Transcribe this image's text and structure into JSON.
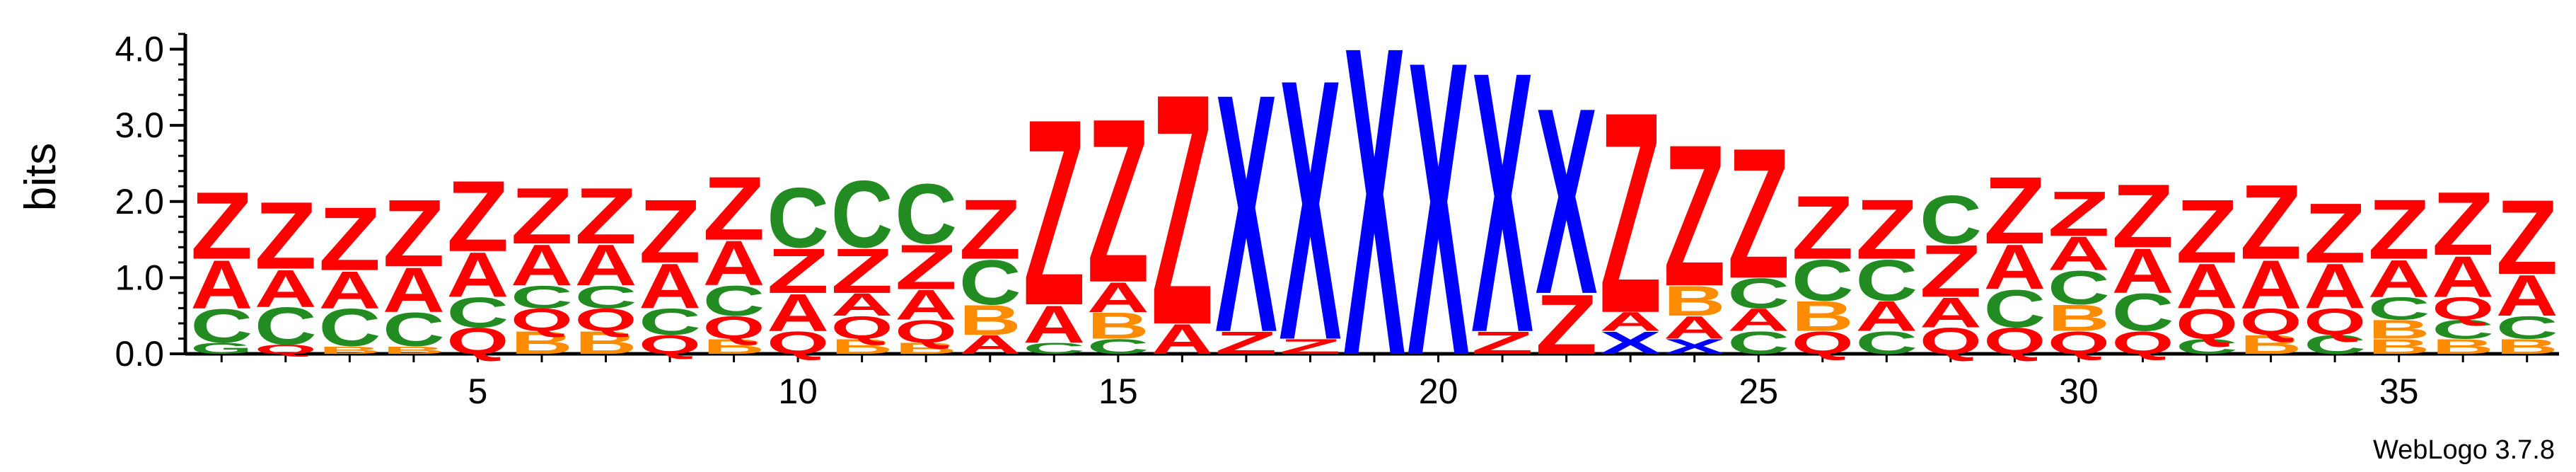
{
  "footer": {
    "version": "WebLogo 3.7.8"
  },
  "colors": {
    "Z": "#ff0000",
    "A": "#ff0000",
    "C": "#228b22",
    "Q": "#ff0000",
    "B": "#ff8c00",
    "X": "#0000ff",
    "G": "#228b22"
  },
  "chart_data": {
    "type": "sequence-logo",
    "ylabel": "bits",
    "ylim": [
      0,
      4.2
    ],
    "yticks": [
      "0.0",
      "1.0",
      "2.0",
      "3.0",
      "4.0"
    ],
    "xticks": [
      5,
      10,
      15,
      20,
      25,
      30,
      35
    ],
    "positions": [
      {
        "pos": 1,
        "stack": [
          [
            "G",
            0.15
          ],
          [
            "C",
            0.45
          ],
          [
            "A",
            0.65
          ],
          [
            "Z",
            0.9
          ]
        ]
      },
      {
        "pos": 2,
        "stack": [
          [
            "Q",
            0.12
          ],
          [
            "C",
            0.5
          ],
          [
            "A",
            0.5
          ],
          [
            "Z",
            0.9
          ]
        ]
      },
      {
        "pos": 3,
        "stack": [
          [
            "B",
            0.1
          ],
          [
            "C",
            0.5
          ],
          [
            "A",
            0.5
          ],
          [
            "Z",
            0.85
          ]
        ]
      },
      {
        "pos": 4,
        "stack": [
          [
            "B",
            0.1
          ],
          [
            "C",
            0.45
          ],
          [
            "A",
            0.6
          ],
          [
            "Z",
            0.9
          ]
        ]
      },
      {
        "pos": 5,
        "stack": [
          [
            "Q",
            0.35
          ],
          [
            "C",
            0.4
          ],
          [
            "A",
            0.6
          ],
          [
            "Z",
            0.95
          ]
        ]
      },
      {
        "pos": 6,
        "stack": [
          [
            "B",
            0.3
          ],
          [
            "Q",
            0.3
          ],
          [
            "C",
            0.3
          ],
          [
            "A",
            0.55
          ],
          [
            "Z",
            0.75
          ]
        ]
      },
      {
        "pos": 7,
        "stack": [
          [
            "B",
            0.3
          ],
          [
            "Q",
            0.3
          ],
          [
            "C",
            0.3
          ],
          [
            "A",
            0.55
          ],
          [
            "Z",
            0.75
          ]
        ]
      },
      {
        "pos": 8,
        "stack": [
          [
            "Q",
            0.25
          ],
          [
            "C",
            0.35
          ],
          [
            "A",
            0.6
          ],
          [
            "Z",
            0.85
          ]
        ]
      },
      {
        "pos": 9,
        "stack": [
          [
            "B",
            0.2
          ],
          [
            "Q",
            0.3
          ],
          [
            "C",
            0.4
          ],
          [
            "A",
            0.6
          ],
          [
            "Z",
            0.85
          ]
        ]
      },
      {
        "pos": 10,
        "stack": [
          [
            "Q",
            0.3
          ],
          [
            "A",
            0.5
          ],
          [
            "Z",
            0.6
          ],
          [
            "C",
            0.8
          ]
        ]
      },
      {
        "pos": 11,
        "stack": [
          [
            "B",
            0.2
          ],
          [
            "Q",
            0.3
          ],
          [
            "A",
            0.3
          ],
          [
            "Z",
            0.6
          ],
          [
            "C",
            0.9
          ]
        ]
      },
      {
        "pos": 12,
        "stack": [
          [
            "B",
            0.15
          ],
          [
            "Q",
            0.3
          ],
          [
            "A",
            0.4
          ],
          [
            "Z",
            0.6
          ],
          [
            "C",
            0.8
          ]
        ]
      },
      {
        "pos": 13,
        "stack": [
          [
            "A",
            0.25
          ],
          [
            "B",
            0.4
          ],
          [
            "C",
            0.6
          ],
          [
            "Z",
            0.8
          ]
        ]
      },
      {
        "pos": 14,
        "stack": [
          [
            "C",
            0.15
          ],
          [
            "A",
            0.5
          ],
          [
            "Z",
            2.5
          ]
        ]
      },
      {
        "pos": 15,
        "stack": [
          [
            "C",
            0.2
          ],
          [
            "B",
            0.35
          ],
          [
            "A",
            0.4
          ],
          [
            "Z",
            2.2
          ]
        ]
      },
      {
        "pos": 16,
        "stack": [
          [
            "A",
            0.4
          ],
          [
            "Z",
            3.1
          ]
        ]
      },
      {
        "pos": 17,
        "stack": [
          [
            "Z",
            0.3
          ],
          [
            "X",
            3.2
          ]
        ]
      },
      {
        "pos": 18,
        "stack": [
          [
            "Z",
            0.2
          ],
          [
            "X",
            3.5
          ]
        ]
      },
      {
        "pos": 19,
        "stack": [
          [
            "X",
            4.15
          ]
        ]
      },
      {
        "pos": 20,
        "stack": [
          [
            "X",
            3.95
          ]
        ]
      },
      {
        "pos": 21,
        "stack": [
          [
            "Z",
            0.3
          ],
          [
            "X",
            3.5
          ]
        ]
      },
      {
        "pos": 22,
        "stack": [
          [
            "Z",
            0.8
          ],
          [
            "X",
            2.5
          ]
        ]
      },
      {
        "pos": 23,
        "stack": [
          [
            "X",
            0.3
          ],
          [
            "A",
            0.25
          ],
          [
            "Z",
            2.7
          ]
        ]
      },
      {
        "pos": 24,
        "stack": [
          [
            "X",
            0.2
          ],
          [
            "A",
            0.3
          ],
          [
            "B",
            0.4
          ],
          [
            "Z",
            1.9
          ]
        ]
      },
      {
        "pos": 25,
        "stack": [
          [
            "C",
            0.3
          ],
          [
            "A",
            0.3
          ],
          [
            "C",
            0.4
          ],
          [
            "Z",
            1.75
          ]
        ]
      },
      {
        "pos": 26,
        "stack": [
          [
            "Q",
            0.3
          ],
          [
            "B",
            0.4
          ],
          [
            "C",
            0.55
          ],
          [
            "Z",
            0.85
          ]
        ]
      },
      {
        "pos": 27,
        "stack": [
          [
            "C",
            0.3
          ],
          [
            "A",
            0.4
          ],
          [
            "C",
            0.55
          ],
          [
            "Z",
            0.8
          ]
        ]
      },
      {
        "pos": 28,
        "stack": [
          [
            "Q",
            0.35
          ],
          [
            "A",
            0.4
          ],
          [
            "Z",
            0.7
          ],
          [
            "C",
            0.65
          ]
        ]
      },
      {
        "pos": 29,
        "stack": [
          [
            "Q",
            0.35
          ],
          [
            "C",
            0.5
          ],
          [
            "A",
            0.6
          ],
          [
            "Z",
            0.9
          ]
        ]
      },
      {
        "pos": 30,
        "stack": [
          [
            "Q",
            0.3
          ],
          [
            "B",
            0.35
          ],
          [
            "C",
            0.45
          ],
          [
            "A",
            0.45
          ],
          [
            "Z",
            0.6
          ]
        ]
      },
      {
        "pos": 31,
        "stack": [
          [
            "Q",
            0.3
          ],
          [
            "C",
            0.5
          ],
          [
            "A",
            0.6
          ],
          [
            "Z",
            0.85
          ]
        ]
      },
      {
        "pos": 32,
        "stack": [
          [
            "C",
            0.2
          ],
          [
            "Q",
            0.4
          ],
          [
            "A",
            0.6
          ],
          [
            "Z",
            0.85
          ]
        ]
      },
      {
        "pos": 33,
        "stack": [
          [
            "B",
            0.25
          ],
          [
            "Q",
            0.35
          ],
          [
            "A",
            0.65
          ],
          [
            "Z",
            1.0
          ]
        ]
      },
      {
        "pos": 34,
        "stack": [
          [
            "C",
            0.25
          ],
          [
            "Q",
            0.35
          ],
          [
            "A",
            0.6
          ],
          [
            "Z",
            0.8
          ]
        ]
      },
      {
        "pos": 35,
        "stack": [
          [
            "B",
            0.2
          ],
          [
            "B",
            0.25
          ],
          [
            "C",
            0.3
          ],
          [
            "A",
            0.5
          ],
          [
            "Z",
            0.8
          ]
        ]
      },
      {
        "pos": 36,
        "stack": [
          [
            "B",
            0.2
          ],
          [
            "C",
            0.25
          ],
          [
            "Q",
            0.3
          ],
          [
            "A",
            0.55
          ],
          [
            "Z",
            0.85
          ]
        ]
      },
      {
        "pos": 37,
        "stack": [
          [
            "B",
            0.2
          ],
          [
            "C",
            0.3
          ],
          [
            "A",
            0.55
          ],
          [
            "Z",
            1.0
          ]
        ]
      }
    ]
  }
}
